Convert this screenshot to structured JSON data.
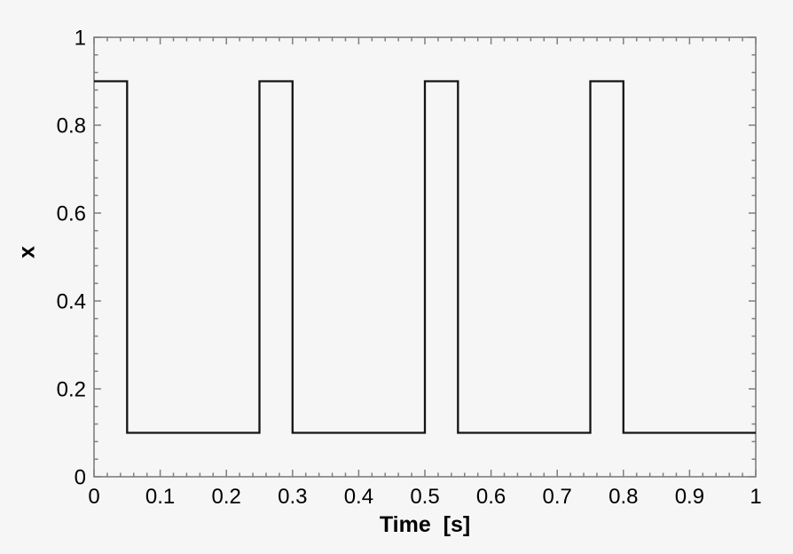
{
  "figure": {
    "background": "#f6f6f6",
    "axis_color": "#7f7f7f",
    "text_color": "#000000"
  },
  "chart_data": {
    "type": "line",
    "title": "",
    "xlabel": "Time  [s]",
    "ylabel": "x",
    "xlim": [
      0,
      1
    ],
    "ylim": [
      0,
      1
    ],
    "grid": false,
    "legend": false,
    "x_major_ticks": [
      0,
      0.1,
      0.2,
      0.3,
      0.4,
      0.5,
      0.6,
      0.7,
      0.8,
      0.9,
      1
    ],
    "x_tick_labels": [
      "0",
      "0.1",
      "0.2",
      "0.3",
      "0.4",
      "0.5",
      "0.6",
      "0.7",
      "0.8",
      "0.9",
      "1"
    ],
    "x_minor_step": 0.02,
    "y_major_ticks": [
      0,
      0.2,
      0.4,
      0.6,
      0.8,
      1
    ],
    "y_tick_labels": [
      "0",
      "0.2",
      "0.4",
      "0.6",
      "0.8",
      "1"
    ],
    "y_minor_step": 0.04,
    "line_color": "#141414",
    "line_width": 2.3,
    "series": [
      {
        "name": "x",
        "points": [
          [
            0.0,
            0.9
          ],
          [
            0.05,
            0.9
          ],
          [
            0.05,
            0.1
          ],
          [
            0.25,
            0.1
          ],
          [
            0.25,
            0.9
          ],
          [
            0.3,
            0.9
          ],
          [
            0.3,
            0.1
          ],
          [
            0.5,
            0.1
          ],
          [
            0.5,
            0.9
          ],
          [
            0.55,
            0.9
          ],
          [
            0.55,
            0.1
          ],
          [
            0.75,
            0.1
          ],
          [
            0.75,
            0.9
          ],
          [
            0.8,
            0.9
          ],
          [
            0.8,
            0.1
          ],
          [
            1.0,
            0.1
          ]
        ]
      }
    ],
    "waveform": {
      "shape": "square",
      "high_level": 0.9,
      "low_level": 0.1,
      "period_s": 0.25,
      "pulse_width_s": 0.05,
      "duty_cycle": 0.2
    }
  }
}
